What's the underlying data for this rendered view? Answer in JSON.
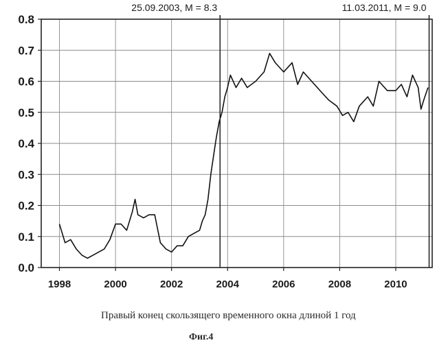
{
  "chart_data": {
    "type": "line",
    "xlabel": "Правый конец скользящего временного окна длиной 1 год",
    "ylabel": "",
    "figure_label": "Фиг.4",
    "xlim": [
      1997.35,
      2011.3
    ],
    "ylim": [
      0.0,
      0.8
    ],
    "x_ticks": [
      "1998",
      "2000",
      "2002",
      "2004",
      "2006",
      "2008",
      "2010"
    ],
    "y_ticks": [
      "0.0",
      "0.1",
      "0.2",
      "0.3",
      "0.4",
      "0.5",
      "0.6",
      "0.7",
      "0.8"
    ],
    "grid": true,
    "annotations": [
      {
        "text": "25.09.2003, M = 8.3",
        "x": 2003.73
      },
      {
        "text": "11.03.2011, M = 9.0",
        "x": 2011.19
      }
    ],
    "series": [
      {
        "x": [
          1998.0,
          1998.1,
          1998.2,
          1998.4,
          1998.6,
          1998.8,
          1999.0,
          1999.2,
          1999.4,
          1999.6,
          1999.8,
          2000.0,
          2000.2,
          2000.4,
          2000.6,
          2000.7,
          2000.8,
          2001.0,
          2001.2,
          2001.4,
          2001.6,
          2001.8,
          2002.0,
          2002.2,
          2002.4,
          2002.6,
          2002.8,
          2003.0,
          2003.1,
          2003.2,
          2003.3,
          2003.4,
          2003.5,
          2003.6,
          2003.7,
          2003.8,
          2003.9,
          2004.0,
          2004.1,
          2004.3,
          2004.5,
          2004.7,
          2005.0,
          2005.3,
          2005.5,
          2005.7,
          2006.0,
          2006.3,
          2006.5,
          2006.7,
          2007.0,
          2007.3,
          2007.6,
          2007.9,
          2008.1,
          2008.3,
          2008.5,
          2008.7,
          2009.0,
          2009.2,
          2009.4,
          2009.7,
          2010.0,
          2010.2,
          2010.4,
          2010.6,
          2010.8,
          2010.9,
          2011.0,
          2011.15
        ],
        "values": [
          0.14,
          0.11,
          0.08,
          0.09,
          0.06,
          0.04,
          0.03,
          0.04,
          0.05,
          0.06,
          0.09,
          0.14,
          0.14,
          0.12,
          0.18,
          0.22,
          0.17,
          0.16,
          0.17,
          0.17,
          0.08,
          0.06,
          0.05,
          0.07,
          0.07,
          0.1,
          0.11,
          0.12,
          0.15,
          0.17,
          0.22,
          0.3,
          0.36,
          0.42,
          0.47,
          0.5,
          0.55,
          0.58,
          0.62,
          0.58,
          0.61,
          0.58,
          0.6,
          0.63,
          0.69,
          0.66,
          0.63,
          0.66,
          0.59,
          0.63,
          0.6,
          0.57,
          0.54,
          0.52,
          0.49,
          0.5,
          0.47,
          0.52,
          0.55,
          0.52,
          0.6,
          0.57,
          0.57,
          0.59,
          0.55,
          0.62,
          0.58,
          0.51,
          0.54,
          0.58
        ]
      }
    ]
  }
}
